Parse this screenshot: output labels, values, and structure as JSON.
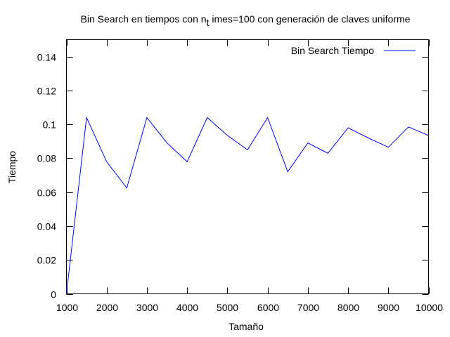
{
  "chart_data": {
    "type": "line",
    "title": {
      "prefix": "Bin Search en tiempos con n",
      "subscript": "t",
      "suffix": " imes=100 con generación de claves uniforme"
    },
    "xlabel": "Tamaño",
    "ylabel": "Tiempo",
    "xlim": [
      1000,
      10000
    ],
    "ylim": [
      0,
      0.15
    ],
    "x_ticks": [
      1000,
      2000,
      3000,
      4000,
      5000,
      6000,
      7000,
      8000,
      9000,
      10000
    ],
    "x_tick_labels": [
      "1000",
      "2000",
      "3000",
      "4000",
      "5000",
      "6000",
      "7000",
      "8000",
      "9000",
      "10000"
    ],
    "y_ticks": [
      0,
      0.02,
      0.04,
      0.06,
      0.08,
      0.1,
      0.12,
      0.14
    ],
    "y_tick_labels": [
      "0",
      "0.02",
      "0.04",
      "0.06",
      "0.08",
      "0.1",
      "0.12",
      "0.14"
    ],
    "grid": false,
    "legend": "top-right",
    "series": [
      {
        "name": "Bin Search Tiempo",
        "color": "#0000ff",
        "x": [
          1000,
          1500,
          2000,
          2500,
          3000,
          3500,
          4000,
          4500,
          5000,
          5500,
          6000,
          6500,
          7000,
          7500,
          8000,
          8500,
          9000,
          9500,
          10000
        ],
        "y": [
          0,
          0.104,
          0.078,
          0.0625,
          0.104,
          0.089,
          0.078,
          0.104,
          0.0935,
          0.085,
          0.104,
          0.072,
          0.089,
          0.083,
          0.098,
          0.092,
          0.0865,
          0.0985,
          0.0935
        ]
      }
    ]
  }
}
